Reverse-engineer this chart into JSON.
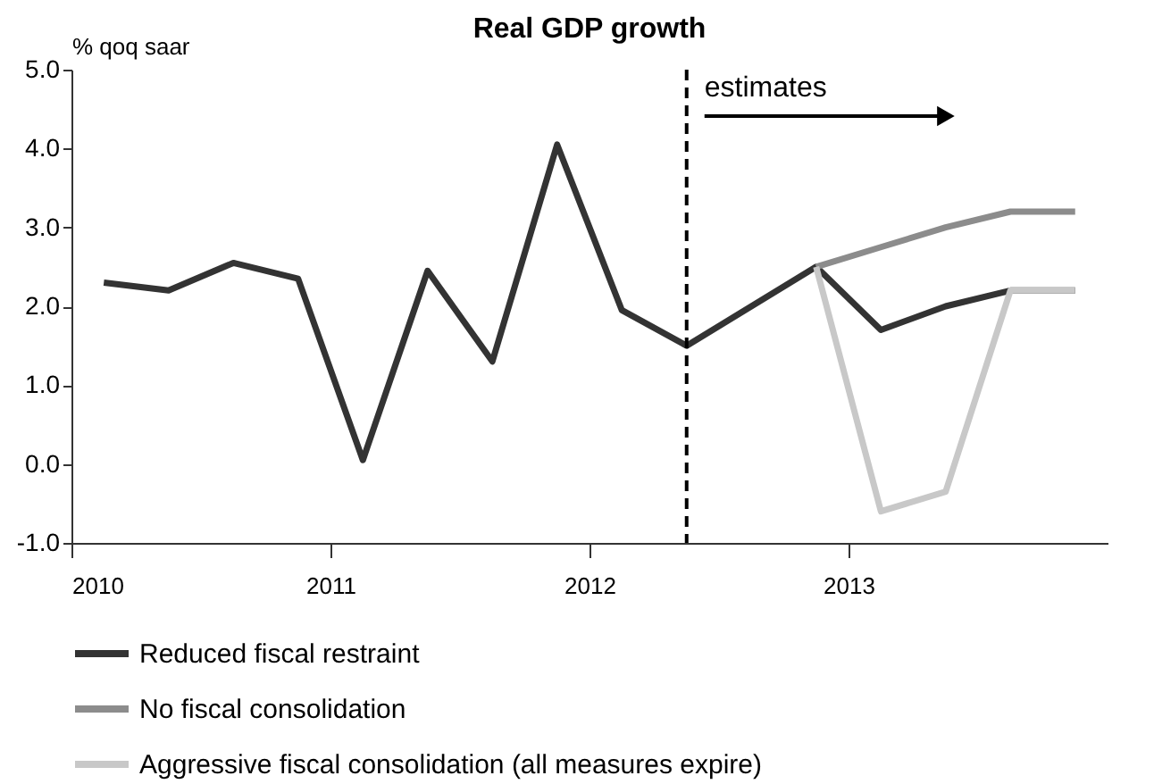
{
  "chart_data": {
    "type": "line",
    "title": "Real GDP growth",
    "ylabel": "% qoq saar",
    "xlim": [
      2010,
      2014
    ],
    "xticks": [
      2010,
      2011,
      2012,
      2013
    ],
    "ylim": [
      -1,
      5
    ],
    "yticks": [
      {
        "value": -1,
        "label": "-1.0"
      },
      {
        "value": 0,
        "label": "0.0"
      },
      {
        "value": 1,
        "label": "1.0"
      },
      {
        "value": 2,
        "label": "2.0"
      },
      {
        "value": 3,
        "label": "3.0"
      },
      {
        "value": 4,
        "label": "4.0"
      },
      {
        "value": 5,
        "label": "5.0"
      }
    ],
    "series": [
      {
        "name": "Reduced fiscal restraint",
        "color": "#333333",
        "x": [
          2010.125,
          2010.375,
          2010.625,
          2010.875,
          2011.125,
          2011.375,
          2011.625,
          2011.875,
          2012.125,
          2012.375,
          2012.625,
          2012.875,
          2013.125,
          2013.375,
          2013.625,
          2013.875
        ],
        "values": [
          2.3,
          2.2,
          2.55,
          2.35,
          0.05,
          2.45,
          1.3,
          4.05,
          1.95,
          1.5,
          2.0,
          2.5,
          1.7,
          2.0,
          2.2,
          2.2
        ]
      },
      {
        "name": "No fiscal consolidation",
        "color": "#8c8c8c",
        "x": [
          2012.875,
          2013.125,
          2013.375,
          2013.625,
          2013.875
        ],
        "values": [
          2.5,
          2.75,
          3.0,
          3.2,
          3.2
        ]
      },
      {
        "name": "Aggressive fiscal consolidation (all measures expire)",
        "color": "#c8c8c8",
        "x": [
          2012.875,
          2013.125,
          2013.375,
          2013.625,
          2013.875
        ],
        "values": [
          2.5,
          -0.6,
          -0.35,
          2.2,
          2.2
        ]
      }
    ],
    "ref_lines": [
      {
        "axis": "x",
        "value": 2012.375,
        "color": "#000000",
        "line_style": "dashed"
      }
    ],
    "annotations": [
      "estimates"
    ],
    "grid": false,
    "legend": "bottom",
    "marker": "none",
    "line_style": "solid"
  }
}
